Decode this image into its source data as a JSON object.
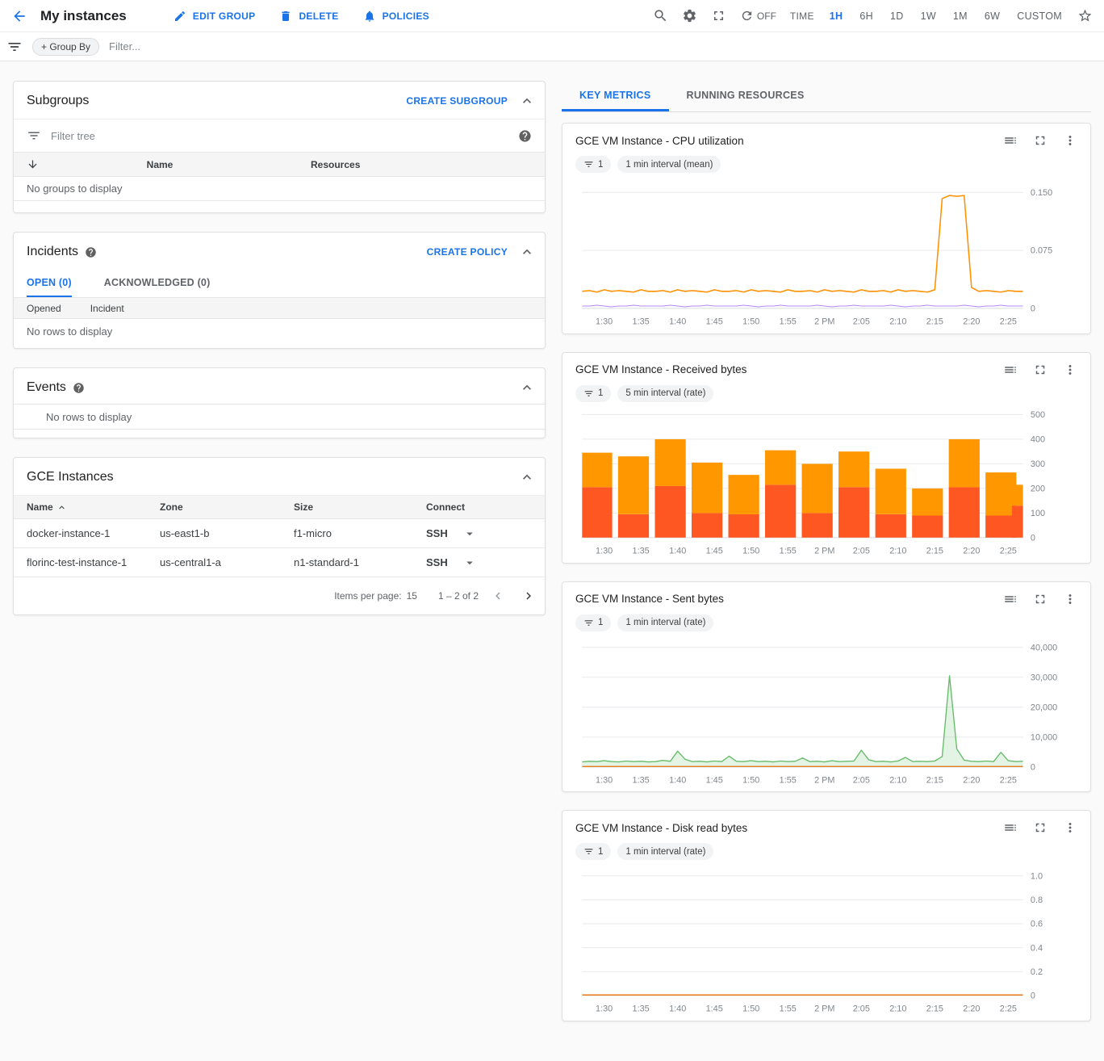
{
  "header": {
    "title": "My instances",
    "actions": {
      "edit_group": "EDIT GROUP",
      "delete": "DELETE",
      "policies": "POLICIES"
    },
    "auto_refresh_label": "OFF",
    "time_label": "TIME",
    "ranges": [
      "1H",
      "6H",
      "1D",
      "1W",
      "1M",
      "6W",
      "CUSTOM"
    ],
    "selected_range": "1H"
  },
  "filter_bar": {
    "group_by_chip": "+ Group By",
    "filter_placeholder": "Filter..."
  },
  "subgroups": {
    "title": "Subgroups",
    "create_button": "CREATE SUBGROUP",
    "filter_placeholder": "Filter tree",
    "columns": [
      "Name",
      "Resources"
    ],
    "empty_text": "No groups to display"
  },
  "incidents": {
    "title": "Incidents",
    "create_button": "CREATE POLICY",
    "tabs": [
      "OPEN (0)",
      "ACKNOWLEDGED (0)"
    ],
    "selected_tab": "OPEN (0)",
    "columns": [
      "Opened",
      "Incident"
    ],
    "empty_text": "No rows to display"
  },
  "events": {
    "title": "Events",
    "empty_text": "No rows to display"
  },
  "gce_instances": {
    "title": "GCE Instances",
    "columns": [
      "Name",
      "Zone",
      "Size",
      "Connect"
    ],
    "rows": [
      {
        "name": "docker-instance-1",
        "zone": "us-east1-b",
        "size": "f1-micro",
        "connect": "SSH"
      },
      {
        "name": "florinc-test-instance-1",
        "zone": "us-central1-a",
        "size": "n1-standard-1",
        "connect": "SSH"
      }
    ],
    "items_per_page_label": "Items per page:",
    "items_per_page_value": "15",
    "page_range": "1 – 2 of 2"
  },
  "metrics_tabs": {
    "tabs": [
      "KEY METRICS",
      "RUNNING RESOURCES"
    ],
    "selected": "KEY METRICS"
  },
  "colors": {
    "accent_blue": "#1a73e8",
    "cpu_line": "#ff9100",
    "cpu_line_secondary": "#b388ff",
    "received_bar_bottom": "#ff5722",
    "received_bar_top": "#ff9800",
    "sent_line": "#66bb6a",
    "zero_rate_line": "#e8710a"
  },
  "icons": {
    "back-arrow": "left-arrow",
    "edit": "pencil",
    "delete": "trash",
    "policies": "bell",
    "search": "magnifier",
    "settings": "gear",
    "fullscreen": "corner-brackets",
    "refresh": "circular-arrow",
    "favorite": "star-outline",
    "filter": "funnel-lines",
    "help": "question-circle",
    "sort-down": "down-arrow",
    "sort-asc": "chevron-up",
    "collapse": "chevron-up",
    "legend": "list-lines",
    "more": "kebab-dots",
    "dropdown": "triangle-down",
    "prev-page": "chevron-left",
    "next-page": "chevron-right"
  },
  "chart_data": [
    {
      "type": "line",
      "title": "GCE VM Instance - CPU utilization",
      "filter_chip": "1",
      "interval_chip": "1 min interval (mean)",
      "x_domain_min": 60,
      "x_ticks": [
        "1:30",
        "1:35",
        "1:40",
        "1:45",
        "1:50",
        "1:55",
        "2 PM",
        "2:05",
        "2:10",
        "2:15",
        "2:20",
        "2:25"
      ],
      "x_tick_min": [
        3,
        8,
        13,
        18,
        23,
        28,
        33,
        38,
        43,
        48,
        53,
        58
      ],
      "ylim": [
        0,
        0.1625
      ],
      "y_ticks": [
        {
          "v": 0,
          "label": "0"
        },
        {
          "v": 0.075,
          "label": "0.075"
        },
        {
          "v": 0.15,
          "label": "0.150"
        }
      ],
      "series": [
        {
          "name": "series-2",
          "color": "#b388ff",
          "width": 1,
          "values": [
            0.003,
            0.003,
            0.004,
            0.003,
            0.002,
            0.003,
            0.003,
            0.004,
            0.003,
            0.003,
            0.003,
            0.003,
            0.004,
            0.003,
            0.002,
            0.003,
            0.003,
            0.004,
            0.003,
            0.003,
            0.003,
            0.003,
            0.004,
            0.003,
            0.002,
            0.003,
            0.003,
            0.004,
            0.003,
            0.003,
            0.003,
            0.003,
            0.004,
            0.003,
            0.002,
            0.003,
            0.003,
            0.004,
            0.003,
            0.003,
            0.003,
            0.003,
            0.004,
            0.003,
            0.002,
            0.003,
            0.003,
            0.004,
            0.003,
            0.003,
            0.003,
            0.003,
            0.004,
            0.003,
            0.002,
            0.003,
            0.003,
            0.004,
            0.003,
            0.003,
            0.003
          ]
        },
        {
          "name": "series-1",
          "color": "#ff9100",
          "width": 1.5,
          "values": [
            0.022,
            0.023,
            0.021,
            0.024,
            0.022,
            0.023,
            0.022,
            0.021,
            0.024,
            0.022,
            0.022,
            0.023,
            0.021,
            0.024,
            0.022,
            0.023,
            0.022,
            0.021,
            0.024,
            0.022,
            0.022,
            0.023,
            0.021,
            0.024,
            0.022,
            0.023,
            0.022,
            0.021,
            0.024,
            0.022,
            0.022,
            0.023,
            0.021,
            0.024,
            0.022,
            0.023,
            0.022,
            0.021,
            0.024,
            0.022,
            0.022,
            0.023,
            0.021,
            0.024,
            0.022,
            0.023,
            0.022,
            0.021,
            0.024,
            0.142,
            0.146,
            0.145,
            0.146,
            0.027,
            0.022,
            0.023,
            0.022,
            0.021,
            0.023,
            0.022,
            0.022
          ]
        }
      ]
    },
    {
      "type": "stacked_bar",
      "title": "GCE VM Instance - Received bytes",
      "filter_chip": "1",
      "interval_chip": "5 min interval (rate)",
      "x_domain_min": 60,
      "x_ticks": [
        "1:30",
        "1:35",
        "1:40",
        "1:45",
        "1:50",
        "1:55",
        "2 PM",
        "2:05",
        "2:10",
        "2:15",
        "2:20",
        "2:25"
      ],
      "x_tick_min": [
        3,
        8,
        13,
        18,
        23,
        28,
        33,
        38,
        43,
        48,
        53,
        58
      ],
      "ylim": [
        0,
        510
      ],
      "y_ticks": [
        {
          "v": 0,
          "label": "0"
        },
        {
          "v": 100,
          "label": "100"
        },
        {
          "v": 200,
          "label": "200"
        },
        {
          "v": 300,
          "label": "300"
        },
        {
          "v": 400,
          "label": "400"
        },
        {
          "v": 500,
          "label": "500"
        }
      ],
      "bar_centers_min": [
        2,
        7,
        12,
        17,
        22,
        27,
        32,
        37,
        42,
        47,
        52,
        57,
        60.6
      ],
      "bar_width_min": 4.2,
      "series": [
        {
          "name": "series-1",
          "color": "#ff5722",
          "values": [
            205,
            95,
            210,
            100,
            95,
            215,
            100,
            205,
            95,
            90,
            205,
            90,
            130
          ]
        },
        {
          "name": "series-2",
          "color": "#ff9800",
          "values": [
            140,
            235,
            190,
            205,
            160,
            140,
            200,
            145,
            185,
            110,
            195,
            175,
            85
          ]
        }
      ]
    },
    {
      "type": "line",
      "title": "GCE VM Instance - Sent bytes",
      "filter_chip": "1",
      "interval_chip": "1 min interval (rate)",
      "x_domain_min": 60,
      "x_ticks": [
        "1:30",
        "1:35",
        "1:40",
        "1:45",
        "1:50",
        "1:55",
        "2 PM",
        "2:05",
        "2:10",
        "2:15",
        "2:20",
        "2:25"
      ],
      "x_tick_min": [
        3,
        8,
        13,
        18,
        23,
        28,
        33,
        38,
        43,
        48,
        53,
        58
      ],
      "ylim": [
        0,
        42000
      ],
      "y_ticks": [
        {
          "v": 0,
          "label": "0"
        },
        {
          "v": 10000,
          "label": "10,000"
        },
        {
          "v": 20000,
          "label": "20,000"
        },
        {
          "v": 30000,
          "label": "30,000"
        },
        {
          "v": 40000,
          "label": "40,000"
        }
      ],
      "series": [
        {
          "name": "series-1",
          "color": "#66bb6a",
          "width": 1.3,
          "fill": true,
          "values": [
            1700,
            1900,
            1800,
            2100,
            1800,
            1700,
            2000,
            1800,
            1900,
            1700,
            1800,
            2200,
            1900,
            5300,
            2600,
            1800,
            1900,
            1700,
            2000,
            1800,
            3600,
            1900,
            1800,
            2100,
            1800,
            1900,
            1700,
            2000,
            1800,
            1900,
            3000,
            1800,
            1900,
            1700,
            2100,
            1800,
            1900,
            2000,
            5600,
            2400,
            1800,
            1900,
            1700,
            2000,
            3200,
            1800,
            1900,
            1800,
            2000,
            3500,
            30500,
            6000,
            2300,
            1900,
            1800,
            2000,
            1800,
            4900,
            2100,
            1800,
            1900
          ]
        },
        {
          "name": "series-2",
          "color": "#e8710a",
          "width": 1.3,
          "constant": 150
        }
      ]
    },
    {
      "type": "line",
      "title": "GCE VM Instance - Disk read bytes",
      "filter_chip": "1",
      "interval_chip": "1 min interval (rate)",
      "x_domain_min": 60,
      "x_ticks": [
        "1:30",
        "1:35",
        "1:40",
        "1:45",
        "1:50",
        "1:55",
        "2 PM",
        "2:05",
        "2:10",
        "2:15",
        "2:20",
        "2:25"
      ],
      "x_tick_min": [
        3,
        8,
        13,
        18,
        23,
        28,
        33,
        38,
        43,
        48,
        53,
        58
      ],
      "ylim": [
        0,
        1.05
      ],
      "y_ticks": [
        {
          "v": 0,
          "label": "0"
        },
        {
          "v": 0.2,
          "label": "0.2"
        },
        {
          "v": 0.4,
          "label": "0.4"
        },
        {
          "v": 0.6,
          "label": "0.6"
        },
        {
          "v": 0.8,
          "label": "0.8"
        },
        {
          "v": 1.0,
          "label": "1.0"
        }
      ],
      "series": [
        {
          "name": "series-1",
          "color": "#e8710a",
          "width": 1.5,
          "constant": 0.004
        }
      ]
    }
  ]
}
